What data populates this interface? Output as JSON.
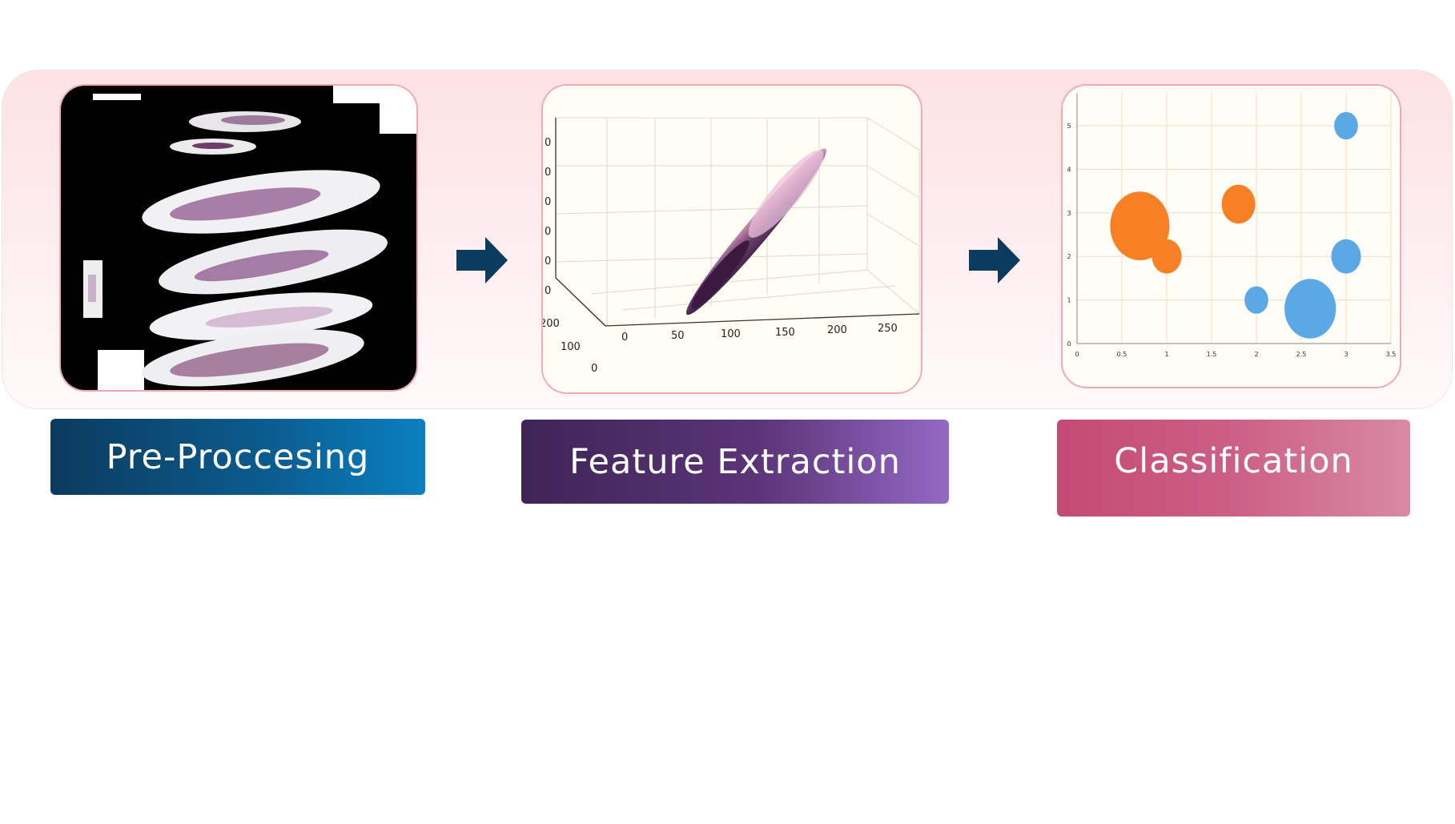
{
  "stages": [
    {
      "label": "Pre-Proccesing"
    },
    {
      "label": "Feature  Extraction"
    },
    {
      "label": "Classification"
    }
  ],
  "feature_plot": {
    "x_ticks": [
      "0",
      "50",
      "100",
      "150",
      "200",
      "250"
    ],
    "y_ticks": [
      "0",
      "100",
      "200"
    ],
    "z_ticks": [
      "0",
      "0",
      "0",
      "0",
      "0",
      "0"
    ]
  },
  "chart_data": {
    "type": "scatter",
    "xlim": [
      0,
      3.5
    ],
    "ylim": [
      0,
      5
    ],
    "x_ticks": [
      "0",
      "0.5",
      "1",
      "1.5",
      "2",
      "2.5",
      "3",
      "3.5"
    ],
    "y_ticks": [
      "0",
      "1",
      "2",
      "3",
      "4",
      "5"
    ],
    "grid": true,
    "series": [
      {
        "color": "#f77f24",
        "points": [
          {
            "x": 0.7,
            "y": 2.7,
            "size": 3
          },
          {
            "x": 1.0,
            "y": 2.0,
            "size": 1.5
          },
          {
            "x": 1.8,
            "y": 3.2,
            "size": 1.7
          }
        ]
      },
      {
        "color": "#5aa9e6",
        "points": [
          {
            "x": 3.0,
            "y": 5.0,
            "size": 1.2
          },
          {
            "x": 3.0,
            "y": 2.0,
            "size": 1.5
          },
          {
            "x": 2.0,
            "y": 1.0,
            "size": 1.2
          },
          {
            "x": 2.6,
            "y": 0.8,
            "size": 2.6
          }
        ]
      }
    ]
  },
  "colors": {
    "panel_border": "#f4a9b1",
    "arrow": "#0b3b5e"
  }
}
